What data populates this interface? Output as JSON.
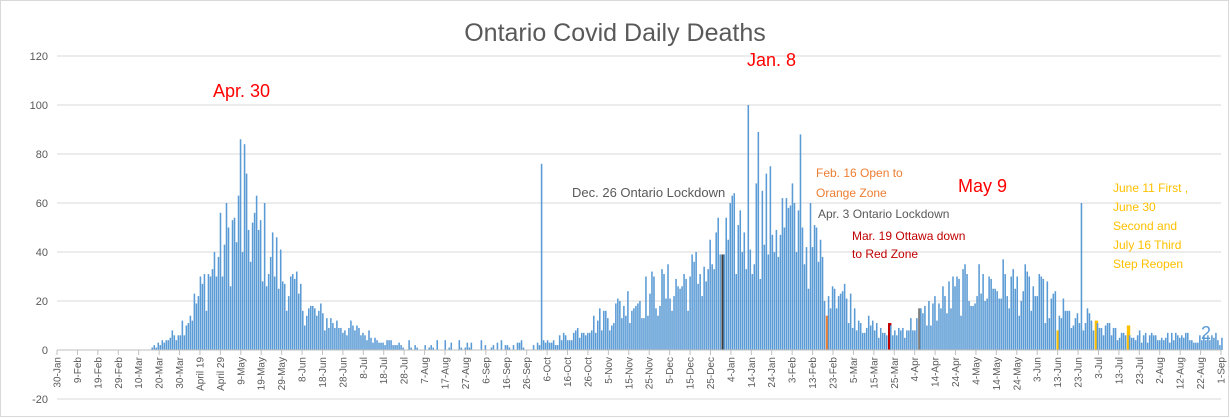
{
  "chart_data": {
    "type": "bar",
    "title": "Ontario Covid Daily Deaths",
    "xlabel": "",
    "ylabel": "",
    "ylim": [
      -20,
      120
    ],
    "yticks": [
      120,
      100,
      80,
      60,
      40,
      20,
      0,
      -20
    ],
    "x_ticks": [
      "30-Jan",
      "9-Feb",
      "19-Feb",
      "29-Feb",
      "10-Mar",
      "20-Mar",
      "30-Mar",
      "April 19",
      "April 29",
      "9-May",
      "19-May",
      "29-May",
      "8-Jun",
      "18-Jun",
      "28-Jun",
      "8-Jul",
      "18-Jul",
      "28-Jul",
      "7-Aug",
      "17-Aug",
      "27-Aug",
      "6-Sep",
      "16-Sep",
      "26-Sep",
      "6-Oct",
      "16-Oct",
      "26-Oct",
      "5-Nov",
      "15-Nov",
      "25-Nov",
      "5-Dec",
      "15-Dec",
      "25-Dec",
      "4-Jan",
      "14-Jan",
      "24-Jan",
      "3-Feb",
      "13-Feb",
      "23-Feb",
      "5-Mar",
      "15-Mar",
      "25-Mar",
      "4-Apr",
      "14-Apr",
      "24-Apr",
      "4-May",
      "14-May",
      "24-May",
      "3-Jun",
      "13-Jun",
      "23-Jun",
      "3-Jul",
      "13-Jul",
      "23-Jul",
      "2-Aug",
      "12-Aug",
      "22-Aug",
      "1-Sep"
    ],
    "peaks": [
      {
        "date": "2020-04-30",
        "value": 86
      },
      {
        "date": "2020-05-02",
        "value": 84
      },
      {
        "date": "2020-09-27",
        "value": 76
      },
      {
        "date": "2021-01-08",
        "value": 100
      },
      {
        "date": "2021-01-13",
        "value": 89
      },
      {
        "date": "2021-02-03",
        "value": 88
      },
      {
        "date": "2021-06-23",
        "value": 60
      },
      {
        "date": "2021-08-31",
        "value": 2
      }
    ],
    "highlight_bars": [
      {
        "date": "2020-12-26",
        "value": 39,
        "color": "#3f3f3f"
      },
      {
        "date": "2021-02-16",
        "value": 14,
        "color": "#ed7d31"
      },
      {
        "date": "2021-03-19",
        "value": 11,
        "color": "#c00000"
      },
      {
        "date": "2021-04-03",
        "value": 17,
        "color": "#7f7f7f"
      },
      {
        "date": "2021-06-11",
        "value": 8,
        "color": "#ffc000"
      },
      {
        "date": "2021-06-30",
        "value": 12,
        "color": "#ffc000"
      },
      {
        "date": "2021-07-16",
        "value": 10,
        "color": "#ffc000"
      }
    ],
    "annotations": [
      {
        "text": "Apr. 30",
        "color": "#ff0000"
      },
      {
        "text": "Jan. 8",
        "color": "#ff0000"
      },
      {
        "text": "May 9",
        "color": "#ff0000"
      },
      {
        "text": "Dec. 26 Ontario Lockdown",
        "color": "#595959"
      },
      {
        "text": "Feb. 16 Open to",
        "color": "#ed7d31"
      },
      {
        "text": "Orange Zone",
        "color": "#ed7d31"
      },
      {
        "text": "Apr. 3 Ontario Lockdown",
        "color": "#595959"
      },
      {
        "text": "Mar. 19 Ottawa down",
        "color": "#c00000"
      },
      {
        "text": "to Red Zone",
        "color": "#c00000"
      },
      {
        "text": "June 11 First ,",
        "color": "#ffc000"
      },
      {
        "text": "June 30",
        "color": "#ffc000"
      },
      {
        "text": "Second and",
        "color": "#ffc000"
      },
      {
        "text": "July 16 Third",
        "color": "#ffc000"
      },
      {
        "text": "Step Reopen",
        "color": "#ffc000"
      },
      {
        "text": "2",
        "color": "#5b9bd5"
      }
    ],
    "series_color": "#5b9bd5"
  }
}
